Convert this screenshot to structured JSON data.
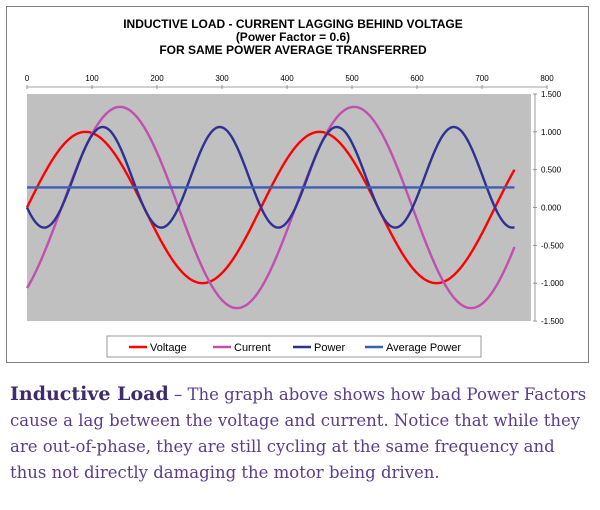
{
  "chart_data": {
    "type": "line",
    "title": [
      "INDUCTIVE LOAD - CURRENT LAGGING BEHIND VOLTAGE",
      "(Power Factor = 0.6)",
      "FOR SAME POWER AVERAGE TRANSFERRED"
    ],
    "xlabel": "",
    "ylabel": "",
    "xlim": [
      0,
      800
    ],
    "ylim": [
      -1.5,
      1.5
    ],
    "x_ticks": [
      "0",
      "100",
      "200",
      "300",
      "400",
      "500",
      "600",
      "700",
      "800"
    ],
    "y_ticks": [
      "1.500",
      "1.000",
      "0.500",
      "0.000",
      "-0.500",
      "-1.000",
      "-1.500"
    ],
    "x_axis_position": "top",
    "y_axis_position": "right",
    "grid": false,
    "legend_position": "bottom",
    "x_range": [
      0,
      750
    ],
    "series": [
      {
        "name": "Voltage",
        "color": "#ff0000",
        "amplitude": 1.0,
        "phase_deg": 0,
        "offset": 0
      },
      {
        "name": "Current",
        "color": "#c04fb0",
        "amplitude": 1.33,
        "phase_deg": -53.13,
        "offset": 0
      },
      {
        "name": "Power",
        "color": "#2e3192",
        "amplitude": 0.44,
        "phase_deg": -53.13,
        "offset": 0.266,
        "kind": "product"
      },
      {
        "name": "Average Power",
        "color": "#3a5fb5",
        "value": 0.266,
        "kind": "constant"
      }
    ],
    "period": 360
  },
  "caption": {
    "lead": "Inductive Load",
    "dash": " – ",
    "text": "The graph above shows how bad Power Factors cause a lag between the voltage and current. Notice that while they are out-of-phase, they are still cycling at the same frequency and thus not directly damaging the motor being driven."
  }
}
